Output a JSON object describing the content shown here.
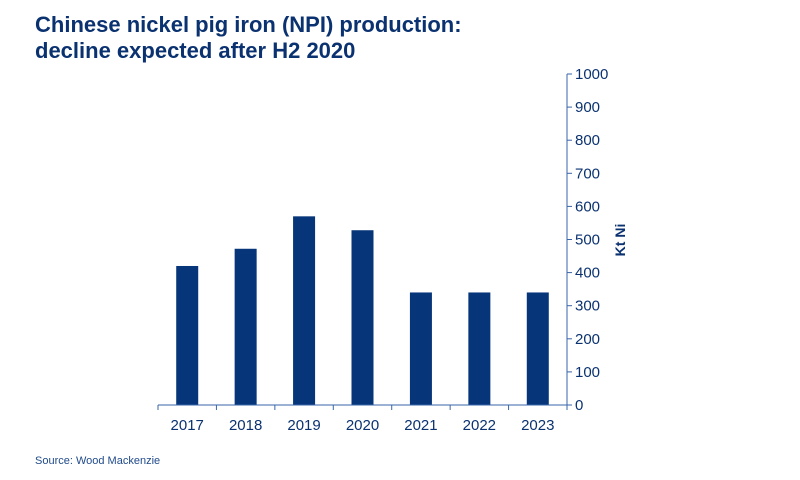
{
  "title_lines": [
    "Chinese nickel pig iron (NPI) production:",
    "decline expected after H2 2020"
  ],
  "source": "Source: Wood Mackenzie",
  "colors": {
    "bar": "#06357a",
    "axis": "#3a64a8",
    "text": "#0b3270"
  },
  "chart_data": {
    "type": "bar",
    "title": "Chinese nickel pig iron (NPI) production: decline expected after H2 2020",
    "categories": [
      "2017",
      "2018",
      "2019",
      "2020",
      "2021",
      "2022",
      "2023"
    ],
    "values": [
      420,
      472,
      570,
      528,
      340,
      340,
      340
    ],
    "xlabel": "",
    "ylabel": "Kt Ni",
    "ylim": [
      0,
      1000
    ],
    "yticks": [
      0,
      100,
      200,
      300,
      400,
      500,
      600,
      700,
      800,
      900,
      1000
    ],
    "y_axis_side": "right",
    "grid": false,
    "legend": "none"
  }
}
